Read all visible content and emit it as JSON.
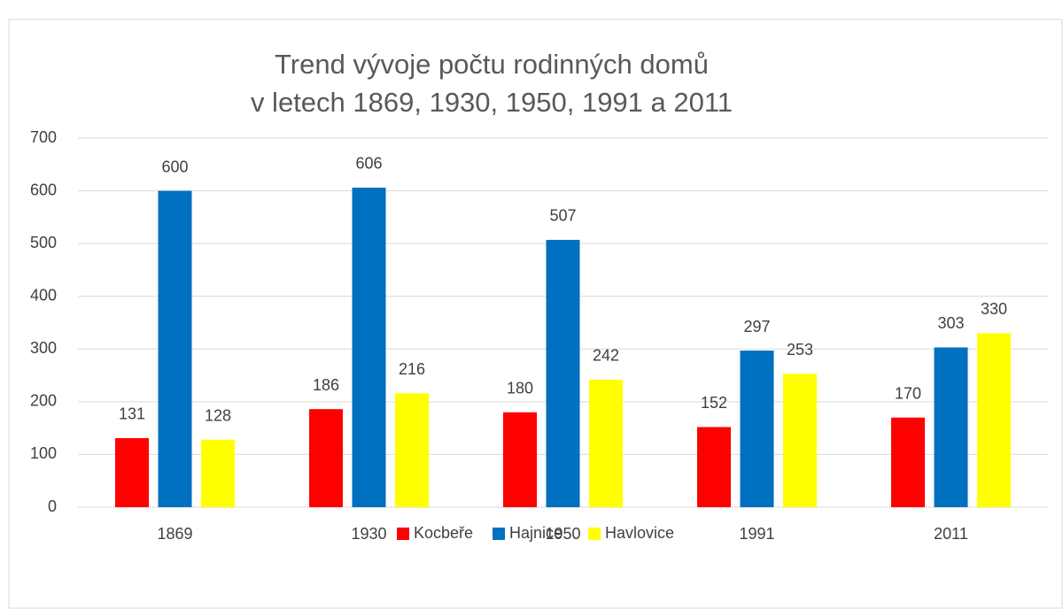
{
  "chart_data": {
    "type": "bar",
    "title": [
      "Trend vývoje počtu rodinných domů",
      "v letech 1869, 1930, 1950, 1991 a 2011"
    ],
    "categories": [
      "1869",
      "1930",
      "1950",
      "1991",
      "2011"
    ],
    "series": [
      {
        "name": "Kocbeře",
        "color": "#ff0000",
        "values": [
          131,
          186,
          180,
          152,
          170
        ]
      },
      {
        "name": "Hajnice",
        "color": "#0070c0",
        "values": [
          600,
          606,
          507,
          297,
          303
        ]
      },
      {
        "name": "Havlovice",
        "color": "#ffff00",
        "values": [
          128,
          216,
          242,
          253,
          330
        ]
      }
    ],
    "ylim": [
      0,
      700
    ],
    "yticks": [
      0,
      100,
      200,
      300,
      400,
      500,
      600,
      700
    ],
    "grid": true,
    "legend": "bottom"
  }
}
